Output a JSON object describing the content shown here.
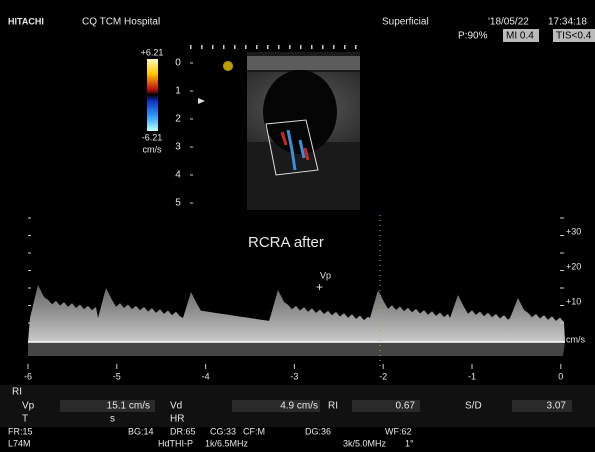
{
  "header": {
    "brand": "HITACHI",
    "hospital": "CQ TCM Hospital",
    "preset": "Superficial",
    "date": "'18/05/22",
    "time": "17:34:18",
    "power": "P:90%",
    "mi": "MI 0.4",
    "tis": "TIS<0.4"
  },
  "color_scale": {
    "max": "+6.21",
    "min": "-6.21",
    "unit": "cm/s"
  },
  "depth_scale": [
    "0",
    "1",
    "2",
    "3",
    "4",
    "5"
  ],
  "annotation": "RCRA  after",
  "marker": "Vp",
  "velocity_scale": {
    "labels": [
      "+30",
      "+20",
      "+10"
    ],
    "unit": "cm/s"
  },
  "time_axis": [
    "-6",
    "-5",
    "-4",
    "-3",
    "-2",
    "-1",
    "0"
  ],
  "measurements": {
    "rows": [
      [
        "RI"
      ],
      [
        "Vp",
        "15.1 cm/s",
        "Vd",
        "4.9 cm/s",
        "RI",
        "0.67",
        "S/D",
        "3.07"
      ],
      [
        "T",
        "s",
        "HR"
      ]
    ]
  },
  "footer": {
    "rows": [
      [
        "FR:15",
        "BG:14",
        "DR:65",
        "CG:33",
        "CF:M",
        "DG:36",
        "WF:62"
      ],
      [
        "L74M",
        "HdTHI-P",
        "1k/6.5MHz",
        "3k/5.0MHz",
        "1°"
      ]
    ]
  }
}
